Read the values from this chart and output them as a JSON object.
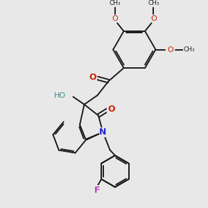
{
  "background_color": "#e8e8e8",
  "bond_color": "#1a1a1a",
  "oxygen_color": "#cc2200",
  "nitrogen_color": "#2222cc",
  "fluorine_color": "#bb44bb",
  "hydroxyl_color": "#448888",
  "figsize": [
    3.0,
    3.0
  ],
  "dpi": 100,
  "xlim": [
    0,
    10
  ],
  "ylim": [
    0,
    10
  ]
}
